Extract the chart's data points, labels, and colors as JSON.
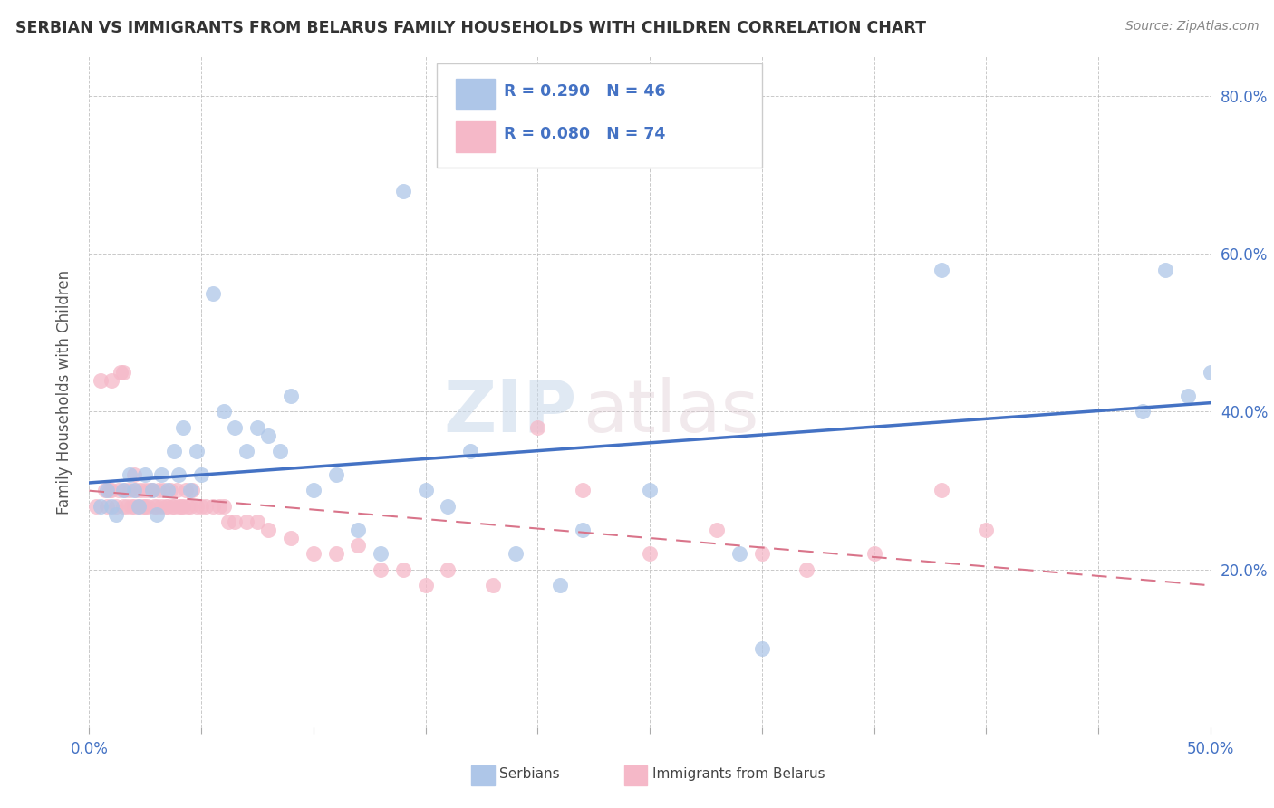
{
  "title": "SERBIAN VS IMMIGRANTS FROM BELARUS FAMILY HOUSEHOLDS WITH CHILDREN CORRELATION CHART",
  "source": "Source: ZipAtlas.com",
  "ylabel": "Family Households with Children",
  "xlim": [
    0.0,
    0.5
  ],
  "ylim": [
    0.0,
    0.85
  ],
  "color_serbian": "#aec6e8",
  "color_belarus": "#f5b8c8",
  "color_trend_serbian": "#4472c4",
  "color_trend_belarus": "#d9748a",
  "serbian_x": [
    0.005,
    0.008,
    0.01,
    0.012,
    0.015,
    0.018,
    0.02,
    0.022,
    0.025,
    0.028,
    0.03,
    0.032,
    0.035,
    0.038,
    0.04,
    0.042,
    0.045,
    0.048,
    0.05,
    0.055,
    0.06,
    0.065,
    0.07,
    0.075,
    0.08,
    0.085,
    0.09,
    0.1,
    0.11,
    0.12,
    0.13,
    0.14,
    0.15,
    0.16,
    0.17,
    0.19,
    0.21,
    0.22,
    0.25,
    0.29,
    0.3,
    0.38,
    0.47,
    0.48,
    0.49,
    0.5
  ],
  "serbian_y": [
    0.28,
    0.3,
    0.28,
    0.27,
    0.3,
    0.32,
    0.3,
    0.28,
    0.32,
    0.3,
    0.27,
    0.32,
    0.3,
    0.35,
    0.32,
    0.38,
    0.3,
    0.35,
    0.32,
    0.55,
    0.4,
    0.38,
    0.35,
    0.38,
    0.37,
    0.35,
    0.42,
    0.3,
    0.32,
    0.25,
    0.22,
    0.68,
    0.3,
    0.28,
    0.35,
    0.22,
    0.18,
    0.25,
    0.3,
    0.22,
    0.1,
    0.58,
    0.4,
    0.58,
    0.42,
    0.45
  ],
  "belarus_x": [
    0.003,
    0.005,
    0.007,
    0.008,
    0.009,
    0.01,
    0.01,
    0.012,
    0.013,
    0.014,
    0.015,
    0.015,
    0.016,
    0.017,
    0.018,
    0.019,
    0.02,
    0.02,
    0.021,
    0.022,
    0.023,
    0.024,
    0.025,
    0.025,
    0.026,
    0.027,
    0.028,
    0.029,
    0.03,
    0.031,
    0.032,
    0.033,
    0.034,
    0.035,
    0.036,
    0.037,
    0.038,
    0.039,
    0.04,
    0.041,
    0.042,
    0.043,
    0.044,
    0.045,
    0.046,
    0.048,
    0.05,
    0.052,
    0.055,
    0.058,
    0.06,
    0.062,
    0.065,
    0.07,
    0.075,
    0.08,
    0.09,
    0.1,
    0.11,
    0.12,
    0.13,
    0.14,
    0.15,
    0.16,
    0.18,
    0.2,
    0.22,
    0.25,
    0.28,
    0.3,
    0.32,
    0.35,
    0.38,
    0.4
  ],
  "belarus_y": [
    0.28,
    0.44,
    0.3,
    0.28,
    0.3,
    0.3,
    0.44,
    0.28,
    0.3,
    0.45,
    0.28,
    0.45,
    0.3,
    0.28,
    0.3,
    0.28,
    0.28,
    0.32,
    0.3,
    0.28,
    0.3,
    0.28,
    0.28,
    0.3,
    0.28,
    0.3,
    0.3,
    0.28,
    0.28,
    0.3,
    0.28,
    0.3,
    0.28,
    0.28,
    0.3,
    0.28,
    0.28,
    0.3,
    0.28,
    0.28,
    0.28,
    0.3,
    0.28,
    0.28,
    0.3,
    0.28,
    0.28,
    0.28,
    0.28,
    0.28,
    0.28,
    0.26,
    0.26,
    0.26,
    0.26,
    0.25,
    0.24,
    0.22,
    0.22,
    0.23,
    0.2,
    0.2,
    0.18,
    0.2,
    0.18,
    0.38,
    0.3,
    0.22,
    0.25,
    0.22,
    0.2,
    0.22,
    0.3,
    0.25
  ],
  "legend_text_1": "R = 0.290   N = 46",
  "legend_text_2": "R = 0.080   N = 74",
  "bottom_label_1": "Serbians",
  "bottom_label_2": "Immigrants from Belarus"
}
